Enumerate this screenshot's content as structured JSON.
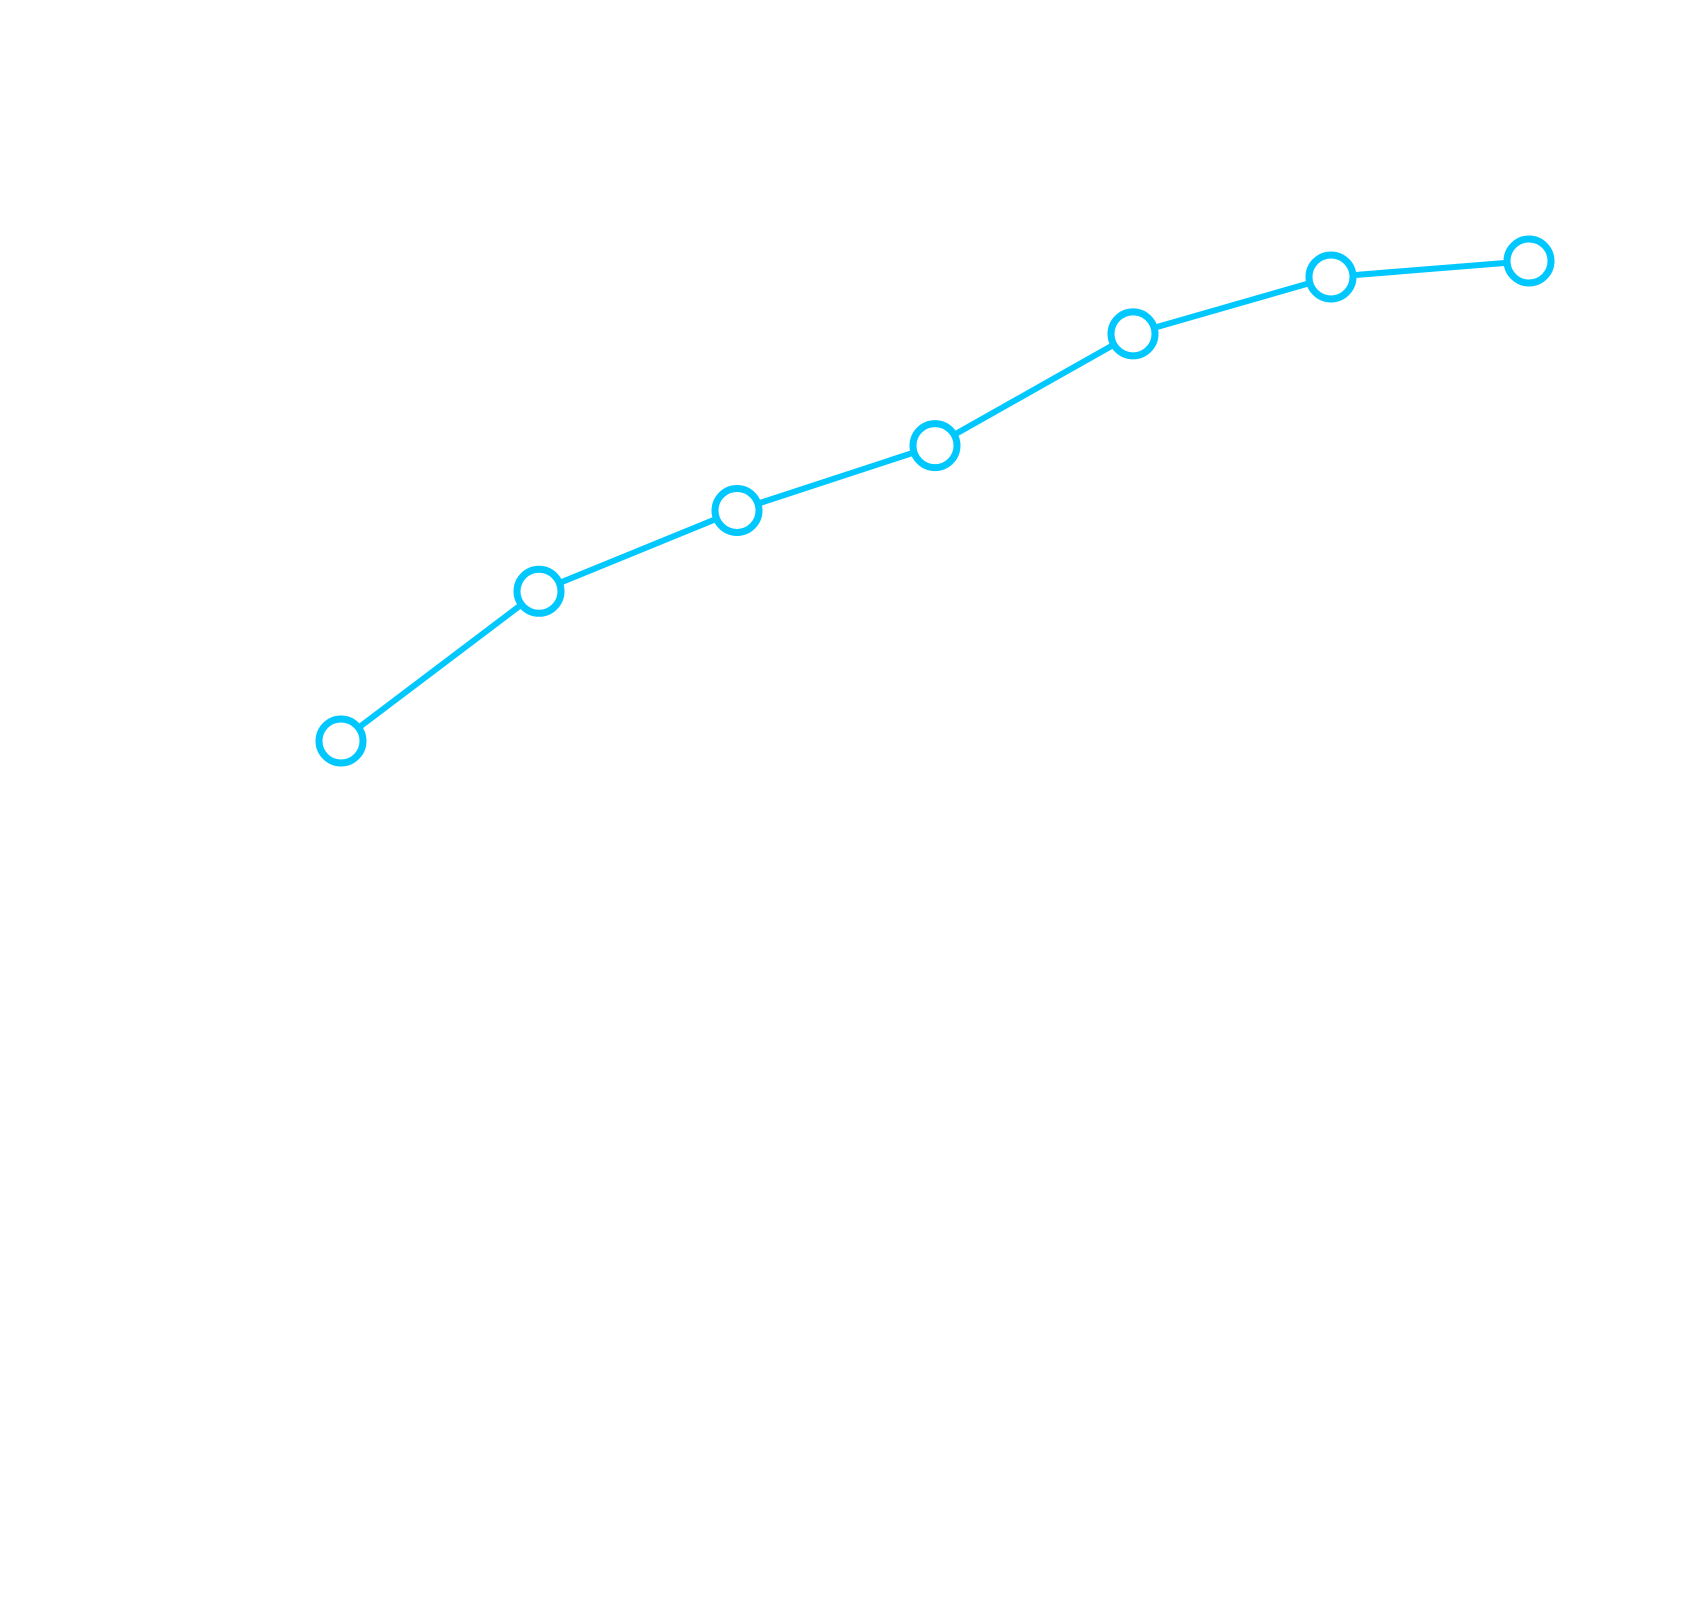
{
  "chart_data": {
    "type": "line",
    "x": [
      1,
      2,
      3,
      4,
      5,
      6,
      7
    ],
    "series": [
      {
        "values": [
          19.4,
          34.4,
          42.5,
          49.0,
          60.2,
          65.9,
          67.5
        ],
        "color": "#00c8ff",
        "marker": "hollow-circle"
      }
    ],
    "title": "",
    "xlabel": "",
    "ylabel": "",
    "xlim": [
      0,
      8
    ],
    "ylim": [
      -70,
      85
    ],
    "grid": false,
    "axes_visible": false,
    "background": "#ffffff"
  }
}
